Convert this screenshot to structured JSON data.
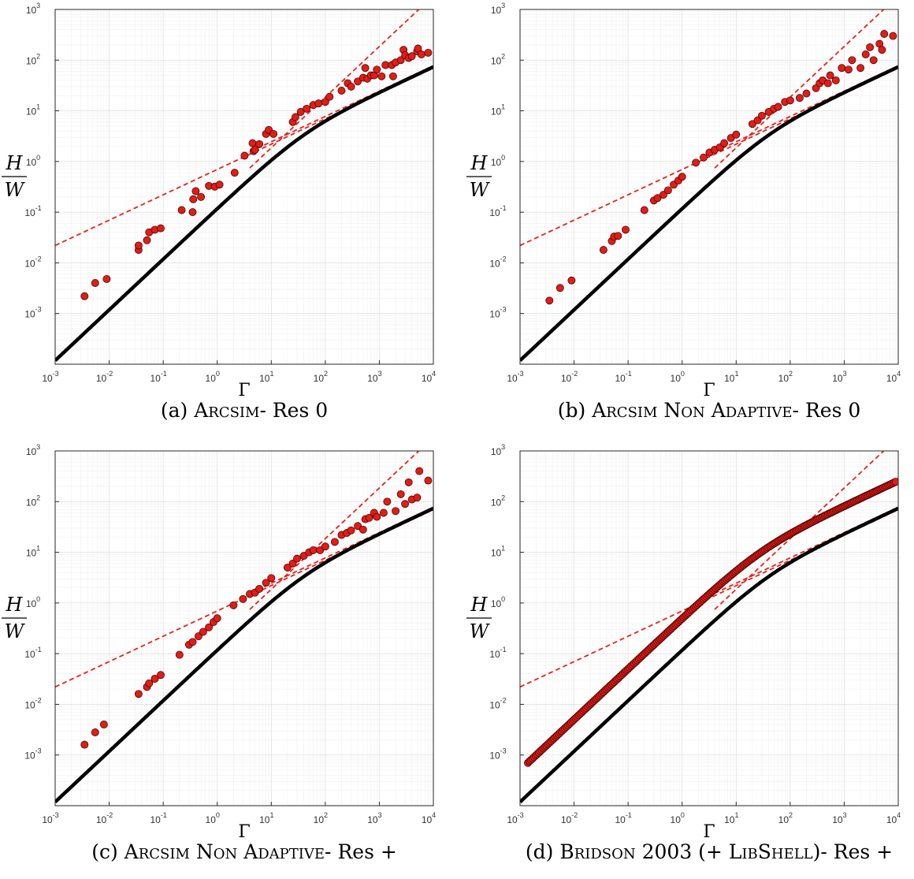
{
  "panels": [
    {
      "caption": {
        "tag": "(a)",
        "method": "Arcsim",
        "suffix": "- Res 0"
      },
      "ylabel_num": "H",
      "ylabel_den": "W",
      "xlabel": "Γ",
      "points": [
        [
          0.0035,
          0.0022
        ],
        [
          0.0055,
          0.004
        ],
        [
          0.009,
          0.0048
        ],
        [
          0.035,
          0.018
        ],
        [
          0.035,
          0.022
        ],
        [
          0.05,
          0.028
        ],
        [
          0.055,
          0.04
        ],
        [
          0.07,
          0.045
        ],
        [
          0.09,
          0.048
        ],
        [
          0.22,
          0.11
        ],
        [
          0.35,
          0.1
        ],
        [
          0.36,
          0.18
        ],
        [
          0.4,
          0.26
        ],
        [
          0.5,
          0.2
        ],
        [
          0.7,
          0.33
        ],
        [
          0.9,
          0.32
        ],
        [
          1.1,
          0.35
        ],
        [
          2.1,
          0.6
        ],
        [
          3.2,
          1.3
        ],
        [
          4.5,
          2.3
        ],
        [
          4.7,
          1.6
        ],
        [
          5,
          1.7
        ],
        [
          6,
          2.2
        ],
        [
          8,
          3.5
        ],
        [
          9,
          4.2
        ],
        [
          11,
          3.5
        ],
        [
          25,
          6
        ],
        [
          28,
          7.5
        ],
        [
          35,
          9.5
        ],
        [
          45,
          11
        ],
        [
          60,
          13
        ],
        [
          75,
          14
        ],
        [
          100,
          15
        ],
        [
          120,
          19
        ],
        [
          200,
          25
        ],
        [
          260,
          35
        ],
        [
          300,
          30
        ],
        [
          400,
          38
        ],
        [
          500,
          45
        ],
        [
          550,
          70
        ],
        [
          600,
          43
        ],
        [
          700,
          50
        ],
        [
          800,
          50
        ],
        [
          900,
          65
        ],
        [
          1100,
          48
        ],
        [
          1300,
          80
        ],
        [
          1700,
          80
        ],
        [
          1800,
          48
        ],
        [
          2000,
          90
        ],
        [
          2500,
          100
        ],
        [
          2800,
          160
        ],
        [
          3000,
          125
        ],
        [
          3500,
          110
        ],
        [
          4000,
          120
        ],
        [
          5000,
          150
        ],
        [
          5200,
          170
        ],
        [
          6000,
          130
        ],
        [
          8000,
          140
        ]
      ]
    },
    {
      "caption": {
        "tag": "(b)",
        "method": "Arcsim Non Adaptive",
        "suffix": "- Res 0"
      },
      "ylabel_num": "H",
      "ylabel_den": "W",
      "xlabel": "Γ",
      "points": [
        [
          0.0035,
          0.0018
        ],
        [
          0.0055,
          0.0032
        ],
        [
          0.009,
          0.0045
        ],
        [
          0.035,
          0.018
        ],
        [
          0.05,
          0.027
        ],
        [
          0.055,
          0.033
        ],
        [
          0.065,
          0.034
        ],
        [
          0.09,
          0.045
        ],
        [
          0.2,
          0.11
        ],
        [
          0.3,
          0.17
        ],
        [
          0.35,
          0.19
        ],
        [
          0.45,
          0.22
        ],
        [
          0.55,
          0.27
        ],
        [
          0.7,
          0.35
        ],
        [
          0.85,
          0.42
        ],
        [
          1,
          0.5
        ],
        [
          1.8,
          0.95
        ],
        [
          2.5,
          1.2
        ],
        [
          3.2,
          1.5
        ],
        [
          4,
          1.7
        ],
        [
          5,
          1.9
        ],
        [
          6,
          2.3
        ],
        [
          8,
          2.9
        ],
        [
          10,
          3.4
        ],
        [
          20,
          5.5
        ],
        [
          25,
          6.5
        ],
        [
          30,
          8
        ],
        [
          40,
          9.5
        ],
        [
          50,
          11
        ],
        [
          60,
          12
        ],
        [
          80,
          15
        ],
        [
          100,
          16
        ],
        [
          150,
          18
        ],
        [
          200,
          22
        ],
        [
          300,
          28
        ],
        [
          350,
          35
        ],
        [
          400,
          40
        ],
        [
          500,
          35
        ],
        [
          550,
          50
        ],
        [
          700,
          40
        ],
        [
          900,
          70
        ],
        [
          1200,
          65
        ],
        [
          1400,
          100
        ],
        [
          2000,
          70
        ],
        [
          2500,
          130
        ],
        [
          3000,
          180
        ],
        [
          3500,
          100
        ],
        [
          4500,
          210
        ],
        [
          5000,
          160
        ],
        [
          5500,
          330
        ],
        [
          8000,
          300
        ]
      ]
    },
    {
      "caption": {
        "tag": "(c)",
        "method": "Arcsim Non Adaptive",
        "suffix": "- Res +"
      },
      "ylabel_num": "H",
      "ylabel_den": "W",
      "xlabel": "Γ",
      "points": [
        [
          0.0035,
          0.0016
        ],
        [
          0.0055,
          0.0028
        ],
        [
          0.008,
          0.004
        ],
        [
          0.035,
          0.016
        ],
        [
          0.05,
          0.022
        ],
        [
          0.055,
          0.026
        ],
        [
          0.07,
          0.032
        ],
        [
          0.09,
          0.038
        ],
        [
          0.2,
          0.095
        ],
        [
          0.3,
          0.15
        ],
        [
          0.35,
          0.17
        ],
        [
          0.45,
          0.22
        ],
        [
          0.55,
          0.27
        ],
        [
          0.7,
          0.33
        ],
        [
          0.85,
          0.42
        ],
        [
          1,
          0.5
        ],
        [
          2,
          0.9
        ],
        [
          3,
          1.2
        ],
        [
          4,
          1.5
        ],
        [
          5,
          1.6
        ],
        [
          6,
          1.9
        ],
        [
          8,
          2.5
        ],
        [
          10,
          3.1
        ],
        [
          20,
          5
        ],
        [
          25,
          6
        ],
        [
          30,
          7.5
        ],
        [
          40,
          8.5
        ],
        [
          50,
          10
        ],
        [
          60,
          11
        ],
        [
          80,
          11
        ],
        [
          100,
          13
        ],
        [
          150,
          16
        ],
        [
          200,
          22
        ],
        [
          250,
          24
        ],
        [
          300,
          27
        ],
        [
          400,
          33
        ],
        [
          500,
          28
        ],
        [
          550,
          45
        ],
        [
          650,
          48
        ],
        [
          800,
          60
        ],
        [
          900,
          50
        ],
        [
          1200,
          60
        ],
        [
          1400,
          100
        ],
        [
          2000,
          65
        ],
        [
          2500,
          140
        ],
        [
          3000,
          90
        ],
        [
          3500,
          240
        ],
        [
          4000,
          110
        ],
        [
          5000,
          120
        ],
        [
          5500,
          400
        ],
        [
          8000,
          260
        ]
      ]
    },
    {
      "caption": {
        "tag": "(d)",
        "method": "Bridson",
        "suffix_plain": " 2003 (+ ",
        "method2": "LibShell",
        "suffix": ")- Res +"
      },
      "ylabel_num": "H",
      "ylabel_den": "W",
      "xlabel": "Γ",
      "dense": {
        "from": 0.0014,
        "to": 9000,
        "count": 240,
        "first": 0.0007
      }
    }
  ],
  "axes": {
    "x": {
      "min": 0.001,
      "max": 10000,
      "scale": "log",
      "ticks": [
        "10^-3",
        "10^-2",
        "10^-1",
        "10^0",
        "10^1",
        "10^2",
        "10^3",
        "10^4"
      ]
    },
    "y": {
      "min": 0.0001,
      "max": 1000,
      "scale": "log",
      "ticks": [
        "10^-3",
        "10^-2",
        "10^-1",
        "10^0",
        "10^1",
        "10^2",
        "10^3"
      ]
    },
    "grid": true
  },
  "model_curve": {
    "description_color": "#000000",
    "low_slope": 1,
    "low_coeff": 0.1183,
    "high_slope": 0.5,
    "high_coeff": 0.7374,
    "a": 0.1183,
    "b": 0.7374
  },
  "guides": {
    "color": "#e8221b",
    "shallow": {
      "coeff": 0.695,
      "exp": 0.5
    },
    "steep": {
      "coeff": 0.186,
      "exp": 1
    }
  },
  "colors": {
    "points": "#e01d16",
    "point_edge": "#3a0000",
    "grid": "#e6e6e6",
    "axis": "#262626"
  }
}
